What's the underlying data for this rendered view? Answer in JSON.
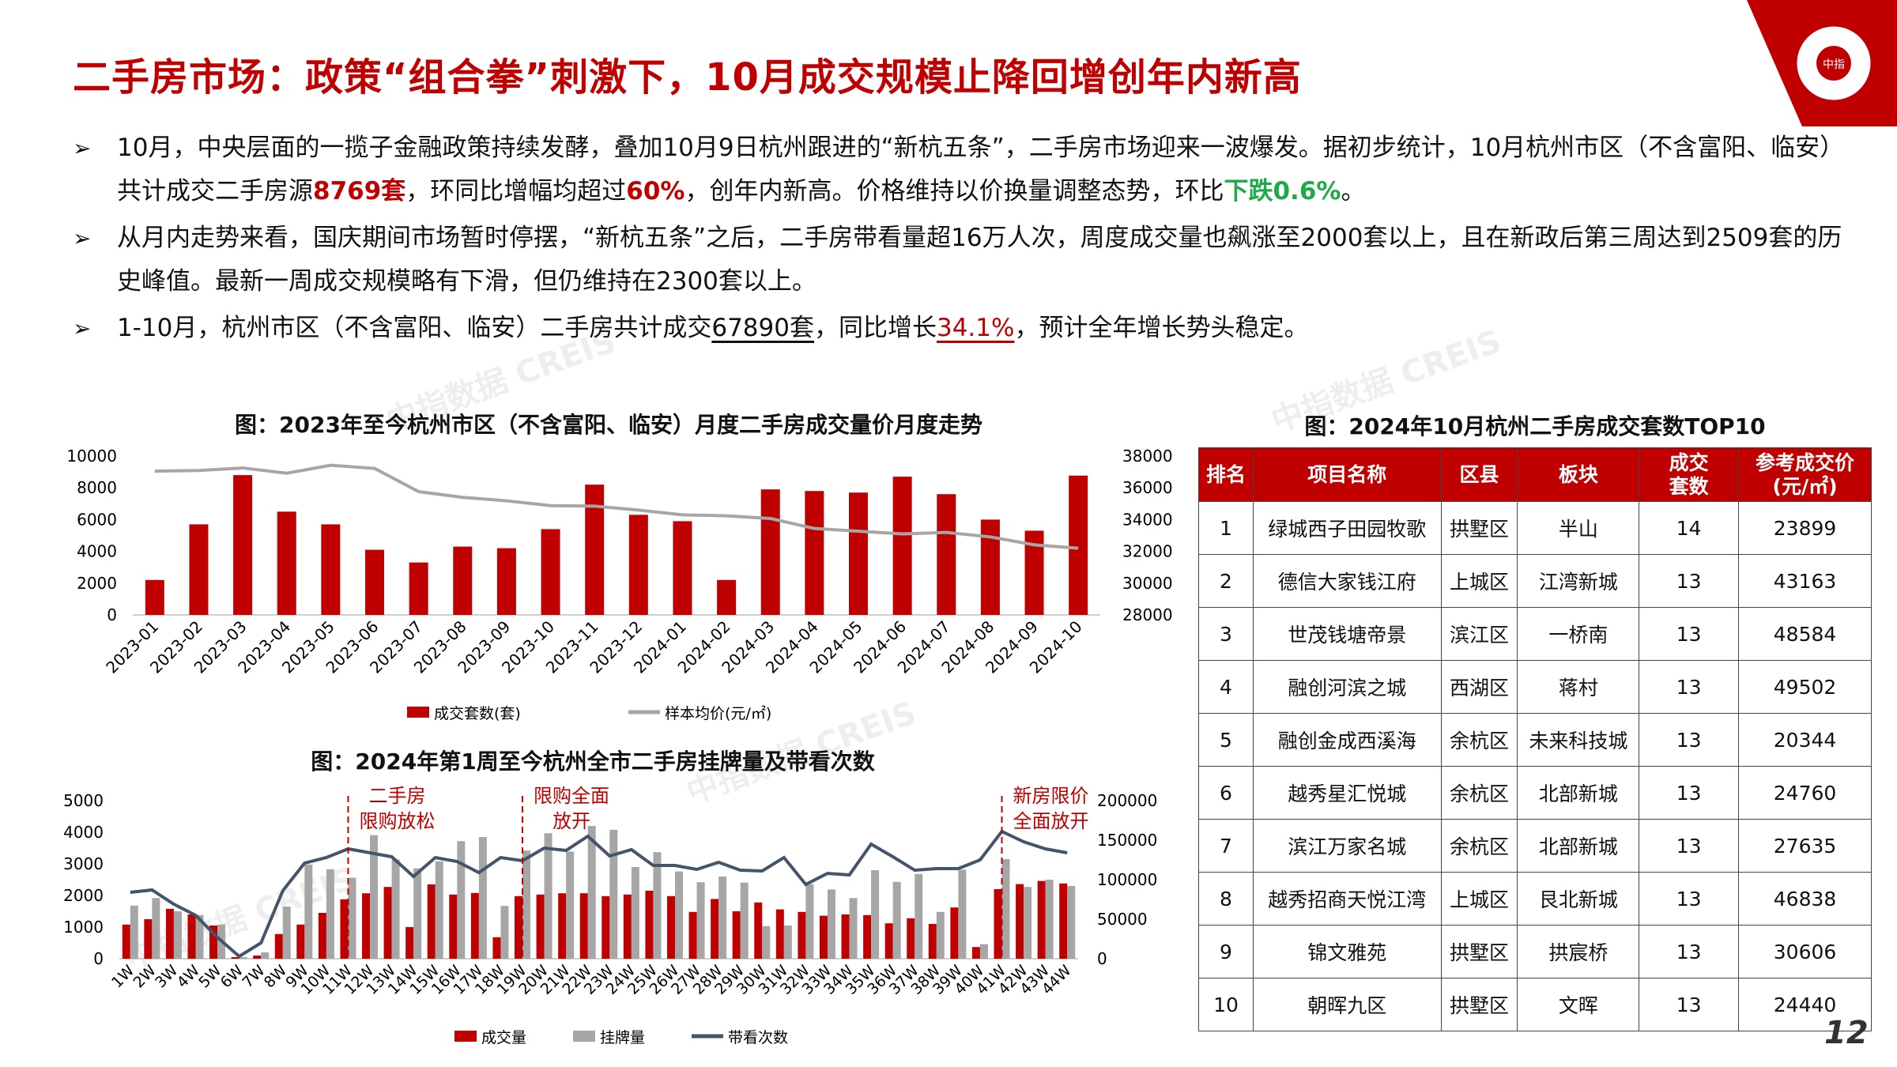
{
  "header": {
    "title": "二手房市场：政策“组合拳”刺激下，10月成交规模止降回增创年内新高",
    "logo_text": "CHINA INDEX ACADEMY 中指研究院",
    "page_number": "12"
  },
  "watermark": "中指数据 CREIS",
  "bullets": [
    {
      "parts": [
        {
          "t": "10月，中央层面的一揽子金融政策持续发酵，叠加10月9日杭州跟进的“新杭五条”，二手房市场迎来一波爆发。据初步统计，10月杭州市区（不含富阳、临安）共计成交二手房源"
        },
        {
          "t": "8769套",
          "s": "red"
        },
        {
          "t": "，环同比增幅均超过"
        },
        {
          "t": "60%",
          "s": "red"
        },
        {
          "t": "，创年内新高。价格维持以价换量调整态势，环比"
        },
        {
          "t": "下跌0.6%",
          "s": "green"
        },
        {
          "t": "。"
        }
      ]
    },
    {
      "parts": [
        {
          "t": "从月内走势来看，国庆期间市场暂时停摆，“新杭五条”之后，二手房带看量超16万人次，周度成交量也飙涨至2000套以上，且在新政后第三周达到2509套的历史峰值。最新一周成交规模略有下滑，但仍维持在2300套以上。"
        }
      ]
    },
    {
      "parts": [
        {
          "t": "1-10月，杭州市区（不含富阳、临安）二手房共计成交"
        },
        {
          "t": "67890套",
          "s": "u"
        },
        {
          "t": "，同比增长"
        },
        {
          "t": "34.1%",
          "s": "u-red"
        },
        {
          "t": "，预计全年增长势头稳定。"
        }
      ]
    }
  ],
  "chart_data": [
    {
      "type": "bar",
      "title": "图：2023年至今杭州市区（不含富阳、临安）月度二手房成交量价月度走势",
      "categories": [
        "2023-01",
        "2023-02",
        "2023-03",
        "2023-04",
        "2023-05",
        "2023-06",
        "2023-07",
        "2023-08",
        "2023-09",
        "2023-10",
        "2023-11",
        "2023-12",
        "2024-01",
        "2024-02",
        "2024-03",
        "2024-04",
        "2024-05",
        "2024-06",
        "2024-07",
        "2024-08",
        "2024-09",
        "2024-10"
      ],
      "series": [
        {
          "name": "成交套数(套)",
          "type": "bar",
          "axis": "left",
          "color": "#c00000",
          "values": [
            2200,
            5700,
            8800,
            6500,
            5700,
            4100,
            3300,
            4300,
            4200,
            5400,
            8200,
            6300,
            5900,
            2200,
            7900,
            7800,
            7700,
            8700,
            7600,
            6000,
            5300,
            8769
          ]
        },
        {
          "name": "样本均价(元/㎡)",
          "type": "line",
          "axis": "right",
          "color": "#a6a6a6",
          "values": [
            37050,
            37090,
            37250,
            36920,
            37420,
            37220,
            35760,
            35400,
            35180,
            34880,
            34850,
            34600,
            34300,
            34240,
            34070,
            33440,
            33270,
            33100,
            33190,
            32910,
            32410,
            32200
          ]
        }
      ],
      "yleft": {
        "ticks": [
          0,
          2000,
          4000,
          6000,
          8000,
          10000
        ],
        "range": [
          0,
          10000
        ]
      },
      "yright": {
        "ticks": [
          28000,
          30000,
          32000,
          34000,
          36000,
          38000
        ],
        "range": [
          28000,
          38000
        ]
      },
      "legend": "bottom"
    },
    {
      "type": "bar",
      "title": "图：2024年第1周至今杭州全市二手房挂牌量及带看次数",
      "categories": [
        "1W",
        "2W",
        "3W",
        "4W",
        "5W",
        "6W",
        "7W",
        "8W",
        "9W",
        "10W",
        "11W",
        "12W",
        "13W",
        "14W",
        "15W",
        "16W",
        "17W",
        "18W",
        "19W",
        "20W",
        "21W",
        "22W",
        "23W",
        "24W",
        "25W",
        "26W",
        "27W",
        "28W",
        "29W",
        "30W",
        "31W",
        "32W",
        "33W",
        "34W",
        "35W",
        "36W",
        "37W",
        "38W",
        "39W",
        "40W",
        "41W",
        "42W",
        "43W",
        "44W"
      ],
      "series": [
        {
          "name": "成交量",
          "type": "bar",
          "axis": "left",
          "color": "#c00000",
          "values": [
            1080,
            1250,
            1580,
            1400,
            1050,
            50,
            100,
            780,
            1080,
            1450,
            1880,
            2070,
            2270,
            1000,
            2350,
            2030,
            2080,
            680,
            1980,
            2030,
            2070,
            2070,
            1980,
            2030,
            2150,
            1980,
            1480,
            1890,
            1500,
            1780,
            1560,
            1480,
            1360,
            1400,
            1380,
            1120,
            1280,
            1100,
            1620,
            370,
            2200,
            2360,
            2460,
            2380
          ]
        },
        {
          "name": "挂牌量",
          "type": "bar",
          "axis": "left",
          "color": "#a6a6a6",
          "values": [
            1680,
            1920,
            1500,
            1380,
            1080,
            50,
            200,
            1650,
            2980,
            2830,
            2560,
            3910,
            3140,
            2860,
            3080,
            3720,
            3850,
            1670,
            3420,
            3970,
            3390,
            4200,
            4080,
            2900,
            3370,
            2760,
            2420,
            2600,
            2410,
            1030,
            1050,
            2360,
            2190,
            1920,
            2800,
            2430,
            2680,
            1480,
            2820,
            460,
            3150,
            2270,
            2500,
            2300
          ]
        },
        {
          "name": "带看次数",
          "type": "line",
          "axis": "right",
          "color": "#44546a",
          "values": [
            84000,
            87000,
            69000,
            55000,
            27000,
            3000,
            20000,
            86000,
            121000,
            128000,
            139000,
            134000,
            129000,
            104000,
            128000,
            123000,
            109000,
            128000,
            124000,
            140000,
            137000,
            155000,
            130000,
            138000,
            118000,
            118000,
            113000,
            122000,
            112000,
            111000,
            128000,
            94000,
            108000,
            106000,
            145000,
            129000,
            112000,
            114000,
            114000,
            125000,
            161000,
            148000,
            139000,
            134000
          ]
        }
      ],
      "yleft": {
        "ticks": [
          0,
          1000,
          2000,
          3000,
          4000,
          5000
        ],
        "range": [
          0,
          5000
        ]
      },
      "yright": {
        "ticks": [
          0,
          50000,
          100000,
          150000,
          200000
        ],
        "range": [
          0,
          200000
        ]
      },
      "annotations": [
        {
          "week": "11W",
          "lines": [
            "二手房",
            "限购放松"
          ]
        },
        {
          "week": "19W",
          "lines": [
            "限购全面",
            "放开"
          ]
        },
        {
          "week": "41W",
          "lines": [
            "新房限价",
            "全面放开"
          ]
        }
      ],
      "legend": "bottom"
    }
  ],
  "table": {
    "title": "图：2024年10月杭州二手房成交套数TOP10",
    "headers": [
      "排名",
      "项目名称",
      "区县",
      "板块",
      "成交\n套数",
      "参考成交价\n(元/㎡)"
    ],
    "rows": [
      [
        "1",
        "绿城西子田园牧歌",
        "拱墅区",
        "半山",
        "14",
        "23899"
      ],
      [
        "2",
        "德信大家钱江府",
        "上城区",
        "江湾新城",
        "13",
        "43163"
      ],
      [
        "3",
        "世茂钱塘帝景",
        "滨江区",
        "一桥南",
        "13",
        "48584"
      ],
      [
        "4",
        "融创河滨之城",
        "西湖区",
        "蒋村",
        "13",
        "49502"
      ],
      [
        "5",
        "融创金成西溪海",
        "余杭区",
        "未来科技城",
        "13",
        "20344"
      ],
      [
        "6",
        "越秀星汇悦城",
        "余杭区",
        "北部新城",
        "13",
        "24760"
      ],
      [
        "7",
        "滨江万家名城",
        "余杭区",
        "北部新城",
        "13",
        "27635"
      ],
      [
        "8",
        "越秀招商天悦江湾",
        "上城区",
        "艮北新城",
        "13",
        "46838"
      ],
      [
        "9",
        "锦文雅苑",
        "拱墅区",
        "拱宸桥",
        "13",
        "30606"
      ],
      [
        "10",
        "朝晖九区",
        "拱墅区",
        "文晖",
        "13",
        "24440"
      ]
    ]
  }
}
